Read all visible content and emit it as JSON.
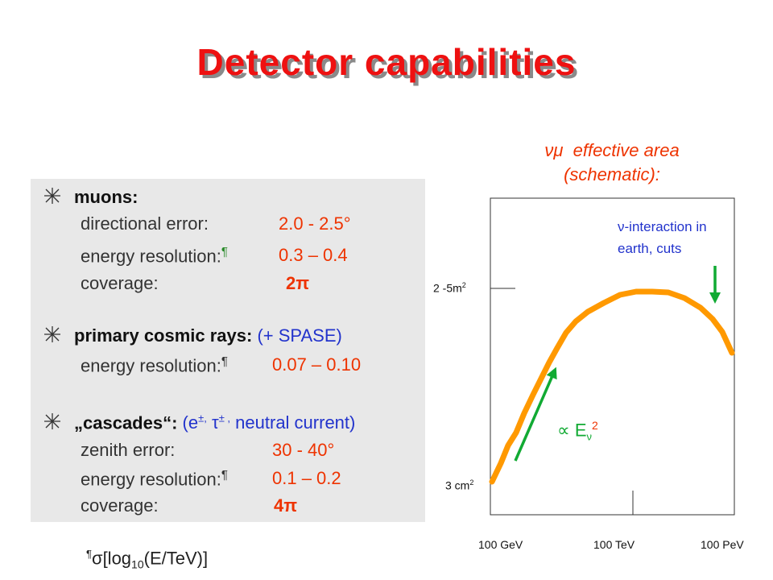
{
  "title": "Detector capabilities",
  "sections": {
    "muons": {
      "heading": "muons:",
      "rows": [
        {
          "label": "directional error:",
          "value": "2.0 - 2.5°"
        },
        {
          "label": "energy resolution:",
          "footnote_mark": "¶",
          "value": "0.3 – 0.4"
        },
        {
          "label": "coverage:",
          "value": "2π"
        }
      ]
    },
    "cosmic": {
      "heading": "primary cosmic rays:",
      "note": "(+ SPASE)",
      "rows": [
        {
          "label": "energy resolution:",
          "footnote_mark": "¶",
          "value": "0.07 – 0.10"
        }
      ]
    },
    "cascades": {
      "heading": "„cascades“:",
      "note_open": "(e",
      "note_sup1": "±,",
      "note_tau": "τ",
      "note_sup2": "± ,",
      "note_close": "neutral current)",
      "rows": [
        {
          "label": "zenith error:",
          "value": "30 - 40°"
        },
        {
          "label": "energy resolution:",
          "footnote_mark": "¶",
          "value": "0.1 – 0.2"
        },
        {
          "label": "coverage:",
          "value": "4π"
        }
      ]
    }
  },
  "footnote": {
    "mark": "¶",
    "sigma": "σ",
    "open": "[log",
    "sub": "10",
    "close": "(E/TeV)]"
  },
  "chart": {
    "title_symbol": "νμ",
    "title_line1": "effective area",
    "title_line2": "(schematic):",
    "y_labels": [
      {
        "base": "2 -5m",
        "sup": "2"
      },
      {
        "base": "3 cm",
        "sup": "2"
      }
    ],
    "x_labels": [
      "100 GeV",
      "100 TeV",
      "100 PeV"
    ],
    "annotation_line1": "ν-interaction in",
    "annotation_line2": "earth, cuts",
    "slope_label": {
      "prop": "∝",
      "E": "E",
      "sub": "ν",
      "sup": "2"
    },
    "colors": {
      "curve": "#ff9900",
      "arrow": "#11aa33",
      "annotation": "#2233cc",
      "title": "#ee3300"
    }
  }
}
